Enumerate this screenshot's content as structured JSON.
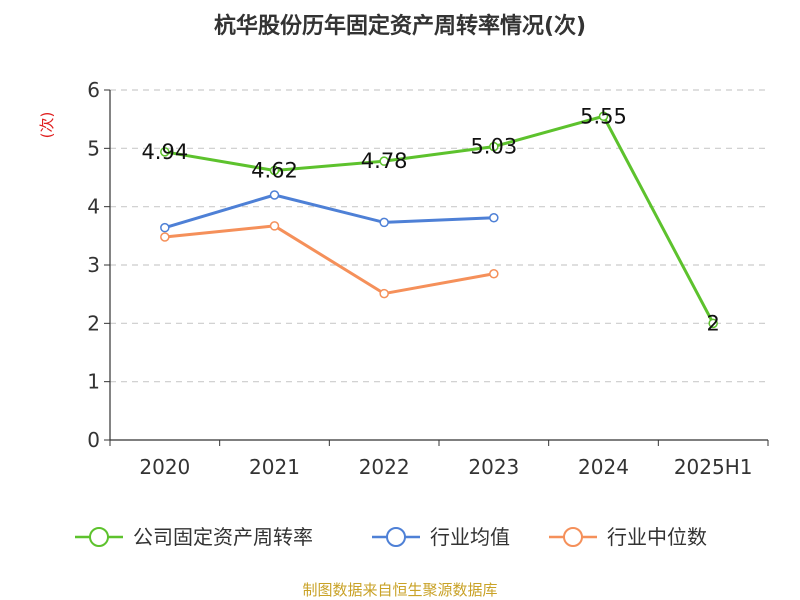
{
  "chart_data": {
    "type": "line",
    "title": "杭华股份历年固定资产周转率情况(次)",
    "ylabel": "(次)",
    "xlabel": "",
    "categories": [
      "2020",
      "2021",
      "2022",
      "2023",
      "2024",
      "2025H1"
    ],
    "ylim": [
      0,
      6
    ],
    "yticks": [
      0,
      1,
      2,
      3,
      4,
      5,
      6
    ],
    "grid": true,
    "legend_position": "bottom",
    "series": [
      {
        "name": "公司固定资产周转率",
        "values": [
          4.94,
          4.62,
          4.78,
          5.03,
          5.55,
          2
        ],
        "labels": [
          "4.94",
          "4.62",
          "4.78",
          "5.03",
          "5.55",
          "2"
        ],
        "color": "#5dc22d"
      },
      {
        "name": "行业均值",
        "values": [
          3.64,
          4.2,
          3.73,
          3.81,
          null,
          null
        ],
        "color": "#4e80d6"
      },
      {
        "name": "行业中位数",
        "values": [
          3.48,
          3.67,
          2.51,
          2.85,
          null,
          null
        ],
        "color": "#f5905a"
      }
    ]
  },
  "source": "制图数据来自恒生聚源数据库",
  "colors": {
    "title": "#333333",
    "ylabel": "#e02020",
    "source": "#c9a227",
    "grid": "#cccccc",
    "axis": "#333333"
  }
}
